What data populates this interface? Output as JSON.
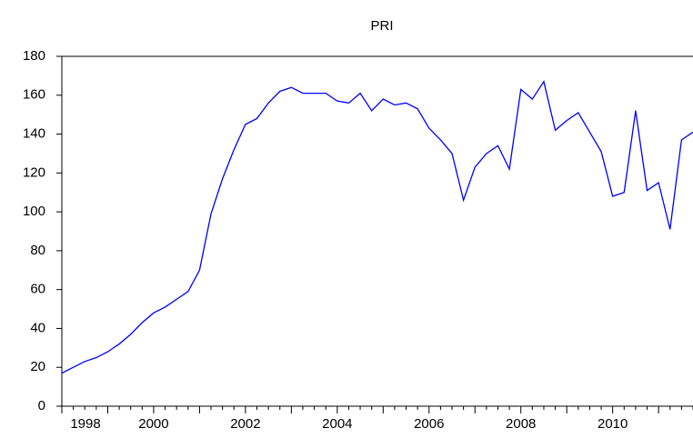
{
  "chart_data": {
    "type": "line",
    "title": "PRI",
    "categories": [
      "1998",
      null,
      null,
      null,
      null,
      null,
      null,
      null,
      "2000",
      null,
      null,
      null,
      null,
      null,
      null,
      null,
      "2002",
      null,
      null,
      null,
      null,
      null,
      null,
      null,
      "2004",
      null,
      null,
      null,
      null,
      null,
      null,
      null,
      "2006",
      null,
      null,
      null,
      null,
      null,
      null,
      null,
      "2008",
      null,
      null,
      null,
      null,
      null,
      null,
      null,
      "2010",
      null,
      null,
      null,
      null,
      null,
      null,
      null
    ],
    "series": [
      {
        "name": "PRI",
        "color": "#0000ff",
        "values": [
          17,
          20,
          23,
          25,
          28,
          32,
          37,
          43,
          48,
          51,
          55,
          59,
          70,
          99,
          117,
          132,
          145,
          148,
          156,
          162,
          164,
          161,
          161,
          161,
          157,
          156,
          161,
          152,
          158,
          155,
          156,
          153,
          143,
          137,
          130,
          106,
          123,
          130,
          134,
          122,
          163,
          158,
          167,
          142,
          147,
          151,
          141,
          131,
          108,
          110,
          152,
          111,
          115,
          91,
          137,
          141
        ]
      }
    ],
    "ylim": [
      0,
      180
    ],
    "yticks": [
      0,
      20,
      40,
      60,
      80,
      100,
      120,
      140,
      160,
      180
    ]
  }
}
